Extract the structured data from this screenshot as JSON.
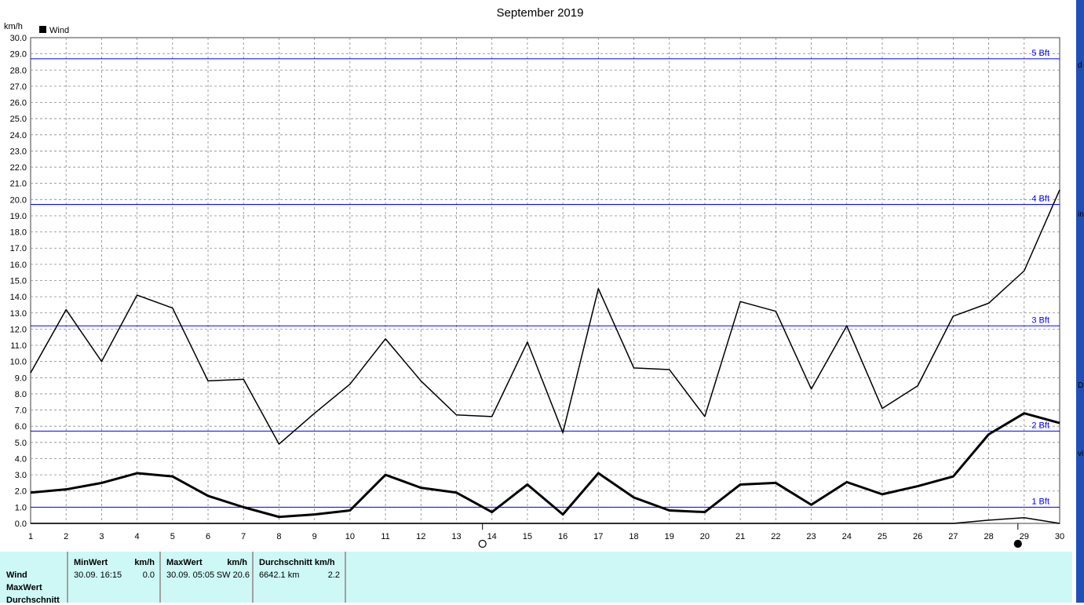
{
  "chart_data": {
    "type": "line",
    "title": "September 2019",
    "ylabel": "km/h",
    "ylim": [
      0,
      30
    ],
    "xlim": [
      1,
      30
    ],
    "yticks": [
      "0.0",
      "1.0",
      "2.0",
      "3.0",
      "4.0",
      "5.0",
      "6.0",
      "7.0",
      "8.0",
      "9.0",
      "10.0",
      "11.0",
      "12.0",
      "13.0",
      "14.0",
      "15.0",
      "16.0",
      "17.0",
      "18.0",
      "19.0",
      "20.0",
      "21.0",
      "22.0",
      "23.0",
      "24.0",
      "25.0",
      "26.0",
      "27.0",
      "28.0",
      "29.0",
      "30.0"
    ],
    "x": [
      1,
      2,
      3,
      4,
      5,
      6,
      7,
      8,
      9,
      10,
      11,
      12,
      13,
      14,
      15,
      16,
      17,
      18,
      19,
      20,
      21,
      22,
      23,
      24,
      25,
      26,
      27,
      28,
      29,
      30
    ],
    "grid": true,
    "legend": {
      "label": "Wind",
      "placement": "top-left"
    },
    "series": [
      {
        "values": [
          9.3,
          13.2,
          10.0,
          14.1,
          13.3,
          8.8,
          8.9,
          4.9,
          6.8,
          8.6,
          11.4,
          8.8,
          6.7,
          6.6,
          11.2,
          5.6,
          14.5,
          9.6,
          9.5,
          6.6,
          13.7,
          13.1,
          8.3,
          12.2,
          7.1,
          8.5,
          12.8,
          13.6,
          15.6,
          20.6
        ],
        "color": "#000000",
        "width": 1.5
      },
      {
        "values": [
          1.9,
          2.1,
          2.5,
          3.1,
          2.9,
          1.7,
          1.0,
          0.4,
          0.55,
          0.8,
          3.0,
          2.2,
          1.9,
          0.7,
          2.4,
          0.55,
          3.1,
          1.6,
          0.8,
          0.7,
          2.4,
          2.5,
          1.15,
          2.55,
          1.8,
          2.3,
          2.9,
          5.5,
          6.8,
          6.2
        ],
        "color": "#000000",
        "width": 3
      },
      {
        "values": [
          0,
          0,
          0,
          0,
          0,
          0,
          0,
          0,
          0,
          0,
          0,
          0,
          0,
          0,
          0,
          0,
          0,
          0,
          0,
          0,
          0,
          0,
          0,
          0,
          0,
          0,
          0,
          0.2,
          0.35,
          0.0
        ],
        "color": "#000000",
        "width": 1.5
      }
    ],
    "reference_lines": [
      {
        "label": "1 Bft",
        "y": 1.0
      },
      {
        "label": "2 Bft",
        "y": 5.7
      },
      {
        "label": "3 Bft",
        "y": 12.2
      },
      {
        "label": "4 Bft",
        "y": 19.7
      },
      {
        "label": "5 Bft",
        "y": 28.7
      }
    ],
    "reference_color": "#0000ff",
    "moon_phases": [
      {
        "day": 14,
        "phase": "full-moon"
      },
      {
        "day": 29,
        "phase": "new-moon"
      }
    ]
  },
  "summary": {
    "rows": [
      "Wind",
      "MaxWert",
      "Durchschnitt"
    ],
    "min": {
      "header": "MinWert",
      "unit": "km/h",
      "date": "30.09.  16:15",
      "value": "0.0"
    },
    "max": {
      "header": "MaxWert",
      "unit": "km/h",
      "date": "30.09.  05:05",
      "dir_value": "SW 20.6"
    },
    "avg": {
      "header": "Durchschnitt km/h",
      "distance": "6642.1 km",
      "value": "2.2"
    }
  },
  "desktop_fragments": [
    "d",
    "in",
    "D",
    "vi"
  ]
}
